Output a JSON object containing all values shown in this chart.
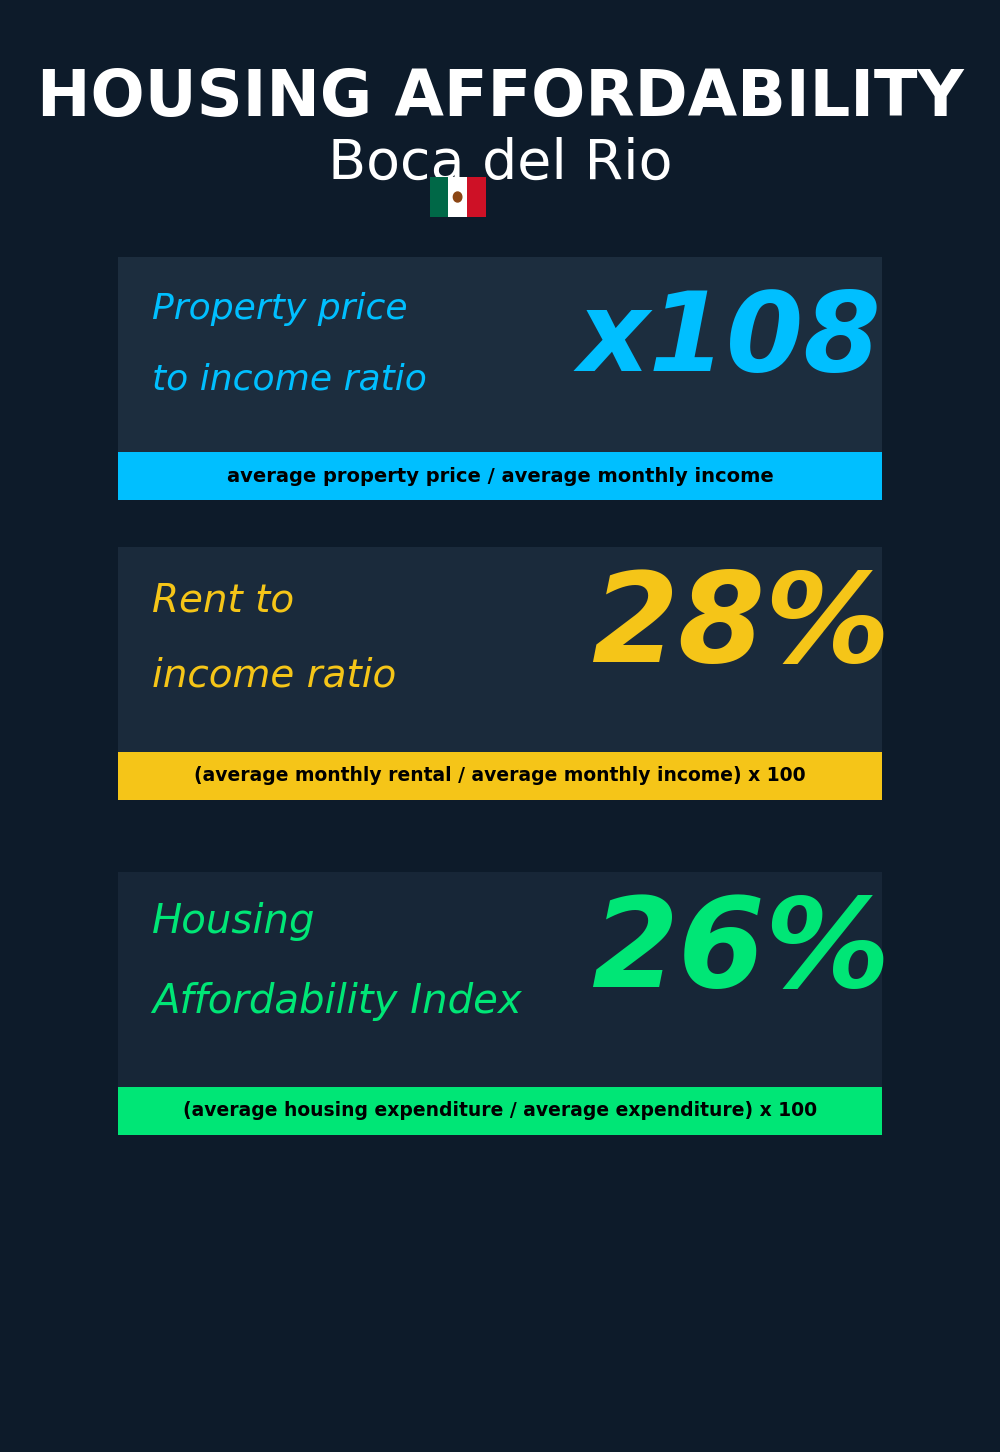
{
  "title_line1": "HOUSING AFFORDABILITY",
  "title_line2": "Boca del Rio",
  "bg_color": "#0d1b2a",
  "section1_label_line1": "Property price",
  "section1_label_line2": "to income ratio",
  "section1_value": "x108",
  "section1_label_color": "#00bfff",
  "section1_value_color": "#00bfff",
  "section1_banner_text": "average property price / average monthly income",
  "section1_banner_bg": "#00bfff",
  "section1_banner_text_color": "#000000",
  "section2_label_line1": "Rent to",
  "section2_label_line2": "income ratio",
  "section2_value": "28%",
  "section2_label_color": "#f5c518",
  "section2_value_color": "#f5c518",
  "section2_banner_text": "(average monthly rental / average monthly income) x 100",
  "section2_banner_bg": "#f5c518",
  "section2_banner_text_color": "#000000",
  "section3_label_line1": "Housing",
  "section3_label_line2": "Affordability Index",
  "section3_value": "26%",
  "section3_label_color": "#00e676",
  "section3_value_color": "#00e676",
  "section3_banner_text": "(average housing expenditure / average expenditure) x 100",
  "section3_banner_bg": "#00e676",
  "section3_banner_text_color": "#000000",
  "overlay_color": "#1a2a3a",
  "overlay_alpha": 0.55
}
